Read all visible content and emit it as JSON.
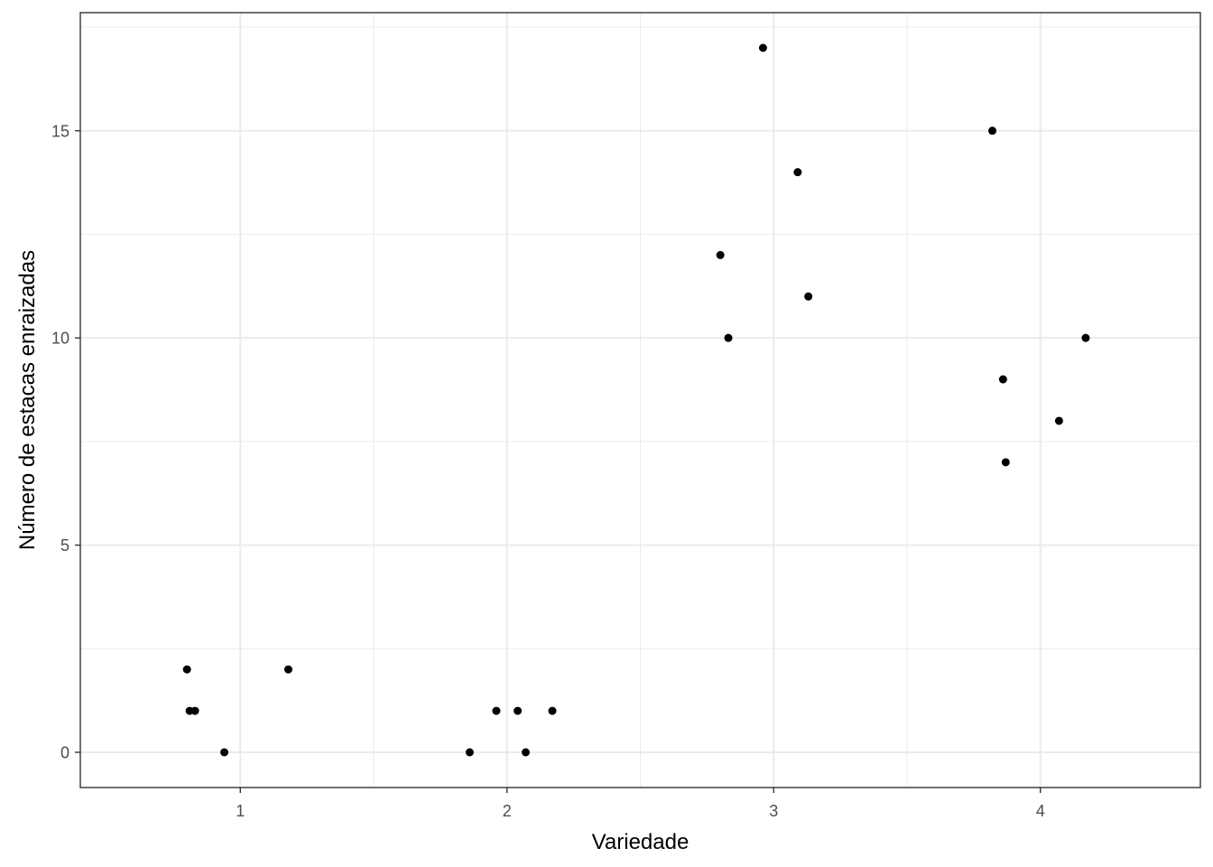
{
  "chart_data": {
    "type": "scatter",
    "title": "",
    "xlabel": "Variedade",
    "ylabel": "Número de estacas enraizadas",
    "xlim": [
      0.4,
      4.6
    ],
    "ylim": [
      -0.85,
      17.85
    ],
    "x_major_ticks": [
      1,
      2,
      3,
      4
    ],
    "x_minor_ticks": [
      1.5,
      2.5,
      3.5
    ],
    "y_major_ticks": [
      0,
      5,
      10,
      15
    ],
    "y_minor_ticks": [
      2.5,
      7.5,
      12.5,
      17.5
    ],
    "x_tick_labels": [
      "1",
      "2",
      "3",
      "4"
    ],
    "y_tick_labels": [
      "0",
      "5",
      "10",
      "15"
    ],
    "grid": true,
    "colors": {
      "points": "#000000",
      "grid": "#ebebeb",
      "panel_border": "#333333",
      "tick_text": "#4d4d4d"
    },
    "points": [
      {
        "x": 0.8,
        "y": 2
      },
      {
        "x": 0.81,
        "y": 1
      },
      {
        "x": 0.83,
        "y": 1
      },
      {
        "x": 0.94,
        "y": 0
      },
      {
        "x": 1.18,
        "y": 2
      },
      {
        "x": 1.86,
        "y": 0
      },
      {
        "x": 1.96,
        "y": 1
      },
      {
        "x": 2.04,
        "y": 1
      },
      {
        "x": 2.07,
        "y": 0
      },
      {
        "x": 2.17,
        "y": 1
      },
      {
        "x": 2.8,
        "y": 12
      },
      {
        "x": 2.83,
        "y": 10
      },
      {
        "x": 2.96,
        "y": 17
      },
      {
        "x": 3.09,
        "y": 14
      },
      {
        "x": 3.13,
        "y": 11
      },
      {
        "x": 3.82,
        "y": 15
      },
      {
        "x": 3.86,
        "y": 9
      },
      {
        "x": 3.87,
        "y": 7
      },
      {
        "x": 4.07,
        "y": 8
      },
      {
        "x": 4.17,
        "y": 10
      }
    ]
  }
}
